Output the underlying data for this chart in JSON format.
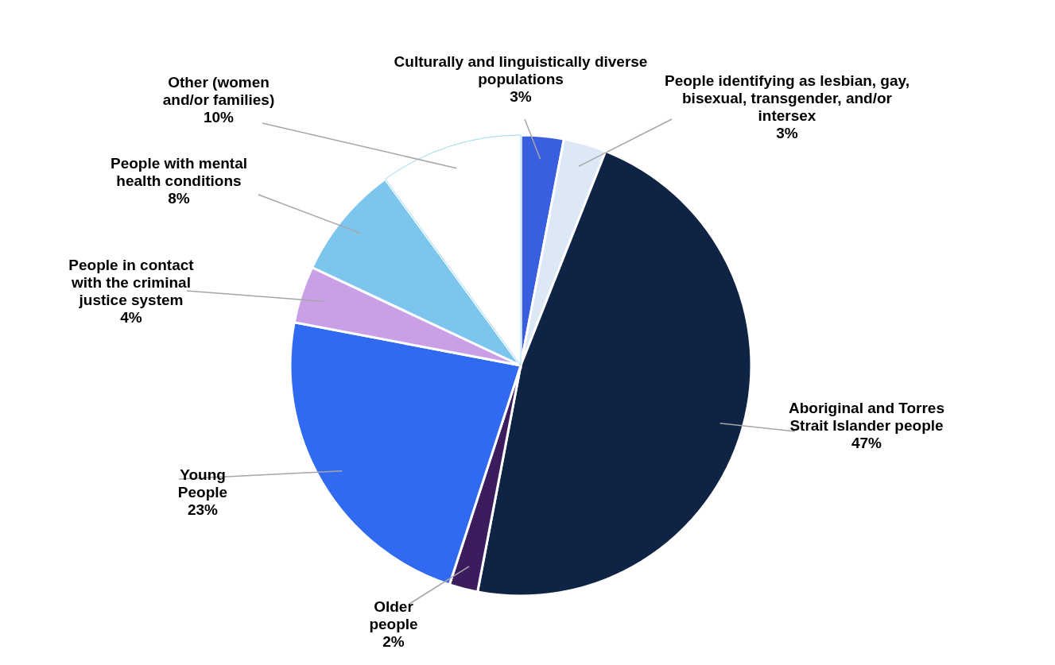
{
  "chart_data": {
    "type": "pie",
    "categories": [
      "Culturally and linguistically diverse populations",
      "People identifying as lesbian, gay, bisexual, transgender, and/or intersex",
      "Aboriginal and Torres Strait Islander people",
      "Older people",
      "Young People",
      "People in contact with the criminal justice system",
      "People with mental health conditions",
      "Other (women and/or families)"
    ],
    "values": [
      3,
      3,
      47,
      2,
      23,
      4,
      8,
      10
    ],
    "value_labels": [
      "3%",
      "3%",
      "47%",
      "2%",
      "23%",
      "4%",
      "8%",
      "10%"
    ],
    "colors": [
      "#3a5ee0",
      "#dce8f6",
      "#0f2444",
      "#3b1d5e",
      "#2f6af0",
      "#c9a0e6",
      "#7cc6ee",
      "#ffffff"
    ]
  }
}
